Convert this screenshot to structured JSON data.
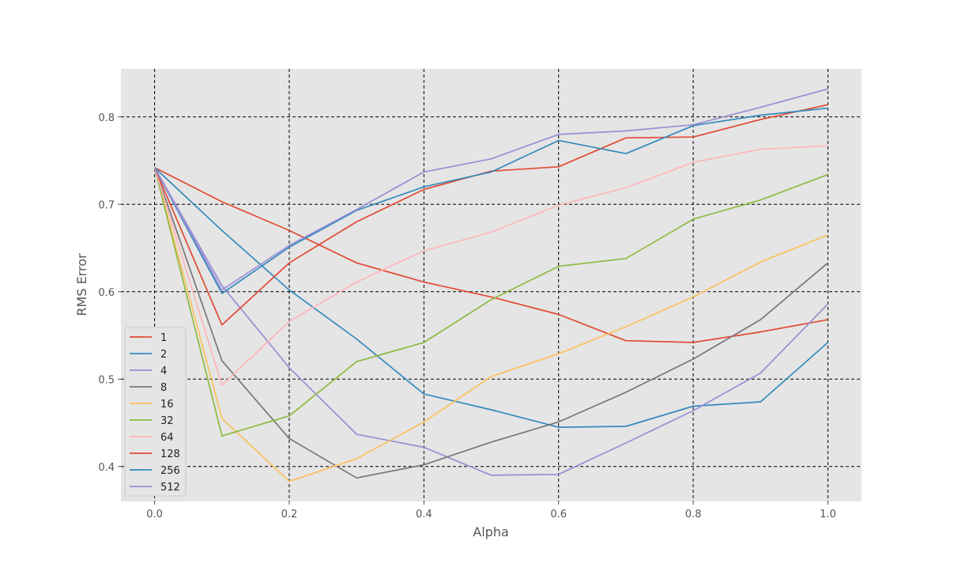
{
  "chart_data": {
    "type": "line",
    "title": "",
    "xlabel": "Alpha",
    "ylabel": "RMS Error",
    "xlim": [
      -0.05,
      1.05
    ],
    "ylim": [
      0.36,
      0.855
    ],
    "x_ticks": [
      0.0,
      0.2,
      0.4,
      0.6,
      0.8,
      1.0
    ],
    "x_tick_labels": [
      "0.0",
      "0.2",
      "0.4",
      "0.6",
      "0.8",
      "1.0"
    ],
    "y_ticks": [
      0.4,
      0.5,
      0.6,
      0.7,
      0.8
    ],
    "y_tick_labels": [
      "0.4",
      "0.5",
      "0.6",
      "0.7",
      "0.8"
    ],
    "grid": true,
    "legend_position": "lower-left",
    "x": [
      0.0,
      0.1,
      0.2,
      0.3,
      0.4,
      0.5,
      0.6,
      0.7,
      0.8,
      0.9,
      1.0
    ],
    "series": [
      {
        "name": "1",
        "color": "#E24A33",
        "values": [
          0.742,
          0.703,
          0.67,
          0.633,
          0.611,
          0.594,
          0.574,
          0.544,
          0.542,
          0.554,
          0.568
        ]
      },
      {
        "name": "2",
        "color": "#348ABD",
        "values": [
          0.742,
          0.67,
          0.602,
          0.546,
          0.483,
          0.465,
          0.445,
          0.446,
          0.469,
          0.474,
          0.542
        ]
      },
      {
        "name": "4",
        "color": "#988ED5",
        "values": [
          0.742,
          0.607,
          0.513,
          0.437,
          0.422,
          0.39,
          0.391,
          0.427,
          0.464,
          0.507,
          0.586
        ]
      },
      {
        "name": "8",
        "color": "#777777",
        "values": [
          0.742,
          0.521,
          0.432,
          0.387,
          0.402,
          0.428,
          0.451,
          0.485,
          0.523,
          0.568,
          0.633
        ]
      },
      {
        "name": "16",
        "color": "#FBC15E",
        "values": [
          0.742,
          0.455,
          0.383,
          0.409,
          0.451,
          0.503,
          0.529,
          0.56,
          0.594,
          0.634,
          0.665
        ]
      },
      {
        "name": "32",
        "color": "#8EBA42",
        "values": [
          0.742,
          0.435,
          0.458,
          0.52,
          0.542,
          0.591,
          0.629,
          0.638,
          0.683,
          0.705,
          0.734
        ]
      },
      {
        "name": "64",
        "color": "#FFB5B8",
        "values": [
          0.742,
          0.493,
          0.566,
          0.611,
          0.647,
          0.668,
          0.699,
          0.719,
          0.748,
          0.763,
          0.767
        ]
      },
      {
        "name": "128",
        "color": "#E24A33",
        "values": [
          0.742,
          0.562,
          0.633,
          0.68,
          0.717,
          0.738,
          0.743,
          0.776,
          0.777,
          0.797,
          0.814
        ]
      },
      {
        "name": "256",
        "color": "#348ABD",
        "values": [
          0.742,
          0.598,
          0.651,
          0.693,
          0.72,
          0.737,
          0.773,
          0.758,
          0.79,
          0.802,
          0.81
        ]
      },
      {
        "name": "512",
        "color": "#988ED5",
        "values": [
          0.742,
          0.602,
          0.653,
          0.694,
          0.737,
          0.752,
          0.78,
          0.784,
          0.791,
          0.811,
          0.832
        ]
      }
    ]
  }
}
